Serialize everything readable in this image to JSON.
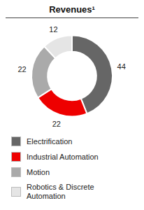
{
  "chart_data": {
    "type": "donut",
    "title": "Revenues¹",
    "categories": [
      "Electrification",
      "Industrial Automation",
      "Motion",
      "Robotics & Discrete\nAutomation"
    ],
    "values": [
      44,
      22,
      22,
      12
    ],
    "colors": [
      "#666666",
      "#ee0000",
      "#aaaaaa",
      "#e5e5e5"
    ],
    "data_labels": true,
    "legend": "bottom"
  }
}
